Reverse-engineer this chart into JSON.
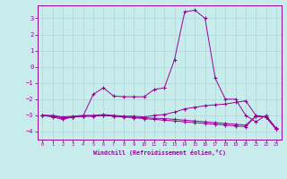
{
  "x": [
    0,
    1,
    2,
    3,
    4,
    5,
    6,
    7,
    8,
    9,
    10,
    11,
    12,
    13,
    14,
    15,
    16,
    17,
    18,
    19,
    20,
    21,
    22,
    23
  ],
  "line1": [
    -3.0,
    -3.1,
    -3.25,
    -3.1,
    -3.05,
    -1.7,
    -1.3,
    -1.8,
    -1.85,
    -1.85,
    -1.85,
    -1.4,
    -1.3,
    0.45,
    3.4,
    3.5,
    3.0,
    -0.7,
    -2.0,
    -2.0,
    -3.0,
    -3.4,
    -3.0,
    -3.8
  ],
  "line2": [
    -3.0,
    -3.0,
    -3.1,
    -3.05,
    -3.0,
    -3.0,
    -2.95,
    -3.0,
    -3.05,
    -3.05,
    -3.1,
    -3.0,
    -2.95,
    -2.8,
    -2.6,
    -2.5,
    -2.4,
    -2.35,
    -2.3,
    -2.2,
    -2.1,
    -3.0,
    -3.1,
    -3.85
  ],
  "line3": [
    -3.0,
    -3.05,
    -3.15,
    -3.1,
    -3.05,
    -3.05,
    -3.0,
    -3.05,
    -3.1,
    -3.15,
    -3.2,
    -3.25,
    -3.3,
    -3.35,
    -3.4,
    -3.45,
    -3.5,
    -3.55,
    -3.6,
    -3.65,
    -3.7,
    -3.05,
    -3.1,
    -3.85
  ],
  "line4": [
    -3.0,
    -3.05,
    -3.15,
    -3.1,
    -3.05,
    -3.05,
    -3.0,
    -3.05,
    -3.08,
    -3.12,
    -3.15,
    -3.18,
    -3.2,
    -3.25,
    -3.3,
    -3.35,
    -3.4,
    -3.45,
    -3.5,
    -3.55,
    -3.6,
    -3.05,
    -3.1,
    -3.85
  ],
  "bg_color": "#c8ecec",
  "grid_color": "#a8d8d8",
  "line_color": "#990099",
  "xlabel": "Windchill (Refroidissement éolien,°C)",
  "ylim": [
    -4.5,
    3.8
  ],
  "yticks": [
    -4,
    -3,
    -2,
    -1,
    0,
    1,
    2,
    3
  ],
  "xlim": [
    -0.5,
    23.5
  ],
  "xticks": [
    0,
    1,
    2,
    3,
    4,
    5,
    6,
    7,
    8,
    9,
    10,
    11,
    12,
    13,
    14,
    15,
    16,
    17,
    18,
    19,
    20,
    21,
    22,
    23
  ]
}
